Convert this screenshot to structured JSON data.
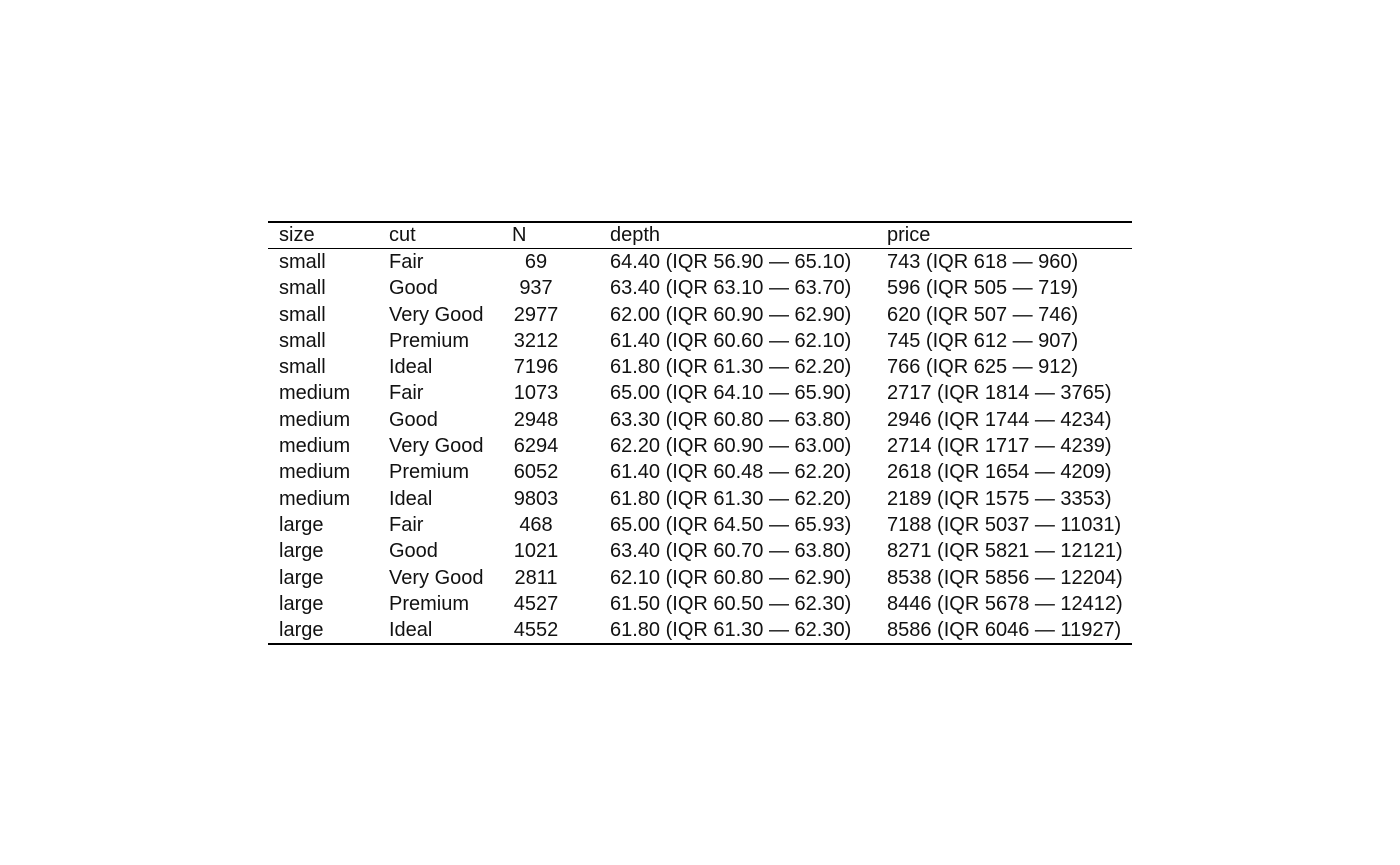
{
  "table": {
    "headers": {
      "size": "size",
      "cut": "cut",
      "n": "N",
      "depth": "depth",
      "price": "price"
    },
    "rows": [
      {
        "size": "small",
        "cut": "Fair",
        "n": "69",
        "depth": "64.40 (IQR 56.90 — 65.10)",
        "price": "743 (IQR 618 — 960)"
      },
      {
        "size": "small",
        "cut": "Good",
        "n": "937",
        "depth": "63.40 (IQR 63.10 — 63.70)",
        "price": "596 (IQR 505 — 719)"
      },
      {
        "size": "small",
        "cut": "Very Good",
        "n": "2977",
        "depth": "62.00 (IQR 60.90 — 62.90)",
        "price": "620 (IQR 507 — 746)"
      },
      {
        "size": "small",
        "cut": "Premium",
        "n": "3212",
        "depth": "61.40 (IQR 60.60 — 62.10)",
        "price": "745 (IQR 612 — 907)"
      },
      {
        "size": "small",
        "cut": "Ideal",
        "n": "7196",
        "depth": "61.80 (IQR 61.30 — 62.20)",
        "price": "766 (IQR 625 — 912)"
      },
      {
        "size": "medium",
        "cut": "Fair",
        "n": "1073",
        "depth": "65.00 (IQR 64.10 — 65.90)",
        "price": "2717 (IQR 1814 — 3765)"
      },
      {
        "size": "medium",
        "cut": "Good",
        "n": "2948",
        "depth": "63.30 (IQR 60.80 — 63.80)",
        "price": "2946 (IQR 1744 — 4234)"
      },
      {
        "size": "medium",
        "cut": "Very Good",
        "n": "6294",
        "depth": "62.20 (IQR 60.90 — 63.00)",
        "price": "2714 (IQR 1717 — 4239)"
      },
      {
        "size": "medium",
        "cut": "Premium",
        "n": "6052",
        "depth": "61.40 (IQR 60.48 — 62.20)",
        "price": "2618 (IQR 1654 — 4209)"
      },
      {
        "size": "medium",
        "cut": "Ideal",
        "n": "9803",
        "depth": "61.80 (IQR 61.30 — 62.20)",
        "price": "2189 (IQR 1575 — 3353)"
      },
      {
        "size": "large",
        "cut": "Fair",
        "n": "468",
        "depth": "65.00 (IQR 64.50 — 65.93)",
        "price": "7188 (IQR 5037 — 11031)"
      },
      {
        "size": "large",
        "cut": "Good",
        "n": "1021",
        "depth": "63.40 (IQR 60.70 — 63.80)",
        "price": "8271 (IQR 5821 — 12121)"
      },
      {
        "size": "large",
        "cut": "Very Good",
        "n": "2811",
        "depth": "62.10 (IQR 60.80 — 62.90)",
        "price": "8538 (IQR 5856 — 12204)"
      },
      {
        "size": "large",
        "cut": "Premium",
        "n": "4527",
        "depth": "61.50 (IQR 60.50 — 62.30)",
        "price": "8446 (IQR 5678 — 12412)"
      },
      {
        "size": "large",
        "cut": "Ideal",
        "n": "4552",
        "depth": "61.80 (IQR 61.30 — 62.30)",
        "price": "8586 (IQR 6046 — 11927)"
      }
    ]
  }
}
